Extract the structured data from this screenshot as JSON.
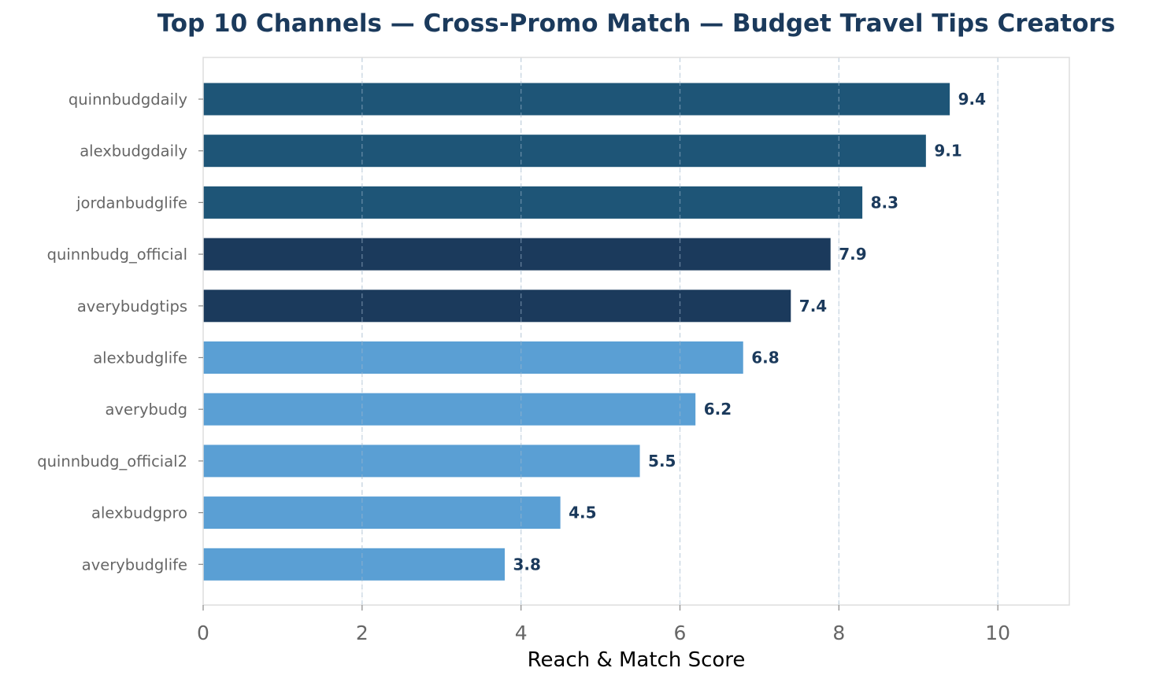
{
  "chart_data": {
    "type": "bar",
    "orientation": "horizontal",
    "title": "Top 10 Channels — Cross-Promo Match — Budget Travel Tips Creators",
    "xlabel": "Reach & Match Score",
    "ylabel": "",
    "xlim": [
      0,
      10.9
    ],
    "x_ticks": [
      "0",
      "2",
      "4",
      "6",
      "8",
      "10"
    ],
    "grid": "vertical dashed",
    "categories": [
      "quinnbudgdaily",
      "alexbudgdaily",
      "jordanbudglife",
      "quinnbudg_official",
      "averybudgtips",
      "alexbudglife",
      "averybudg",
      "quinnbudg_official2",
      "alexbudgpro",
      "averybudglife"
    ],
    "values": [
      9.4,
      9.1,
      8.3,
      7.9,
      7.4,
      6.8,
      6.2,
      5.5,
      4.5,
      3.8
    ],
    "value_labels": [
      "9.4",
      "9.1",
      "8.3",
      "7.9",
      "7.4",
      "6.8",
      "6.2",
      "5.5",
      "4.5",
      "3.8"
    ],
    "bar_colors": [
      "#1e5577",
      "#1e5577",
      "#1e5577",
      "#1b3a5c",
      "#1b3a5c",
      "#5a9fd4",
      "#5a9fd4",
      "#5a9fd4",
      "#5a9fd4",
      "#5a9fd4"
    ],
    "colors": {
      "title": "#1b3a5c",
      "value_label": "#1b3a5c",
      "tick_label": "#666666",
      "axis": "#dddddd",
      "grid": "#c8d2dc"
    }
  }
}
